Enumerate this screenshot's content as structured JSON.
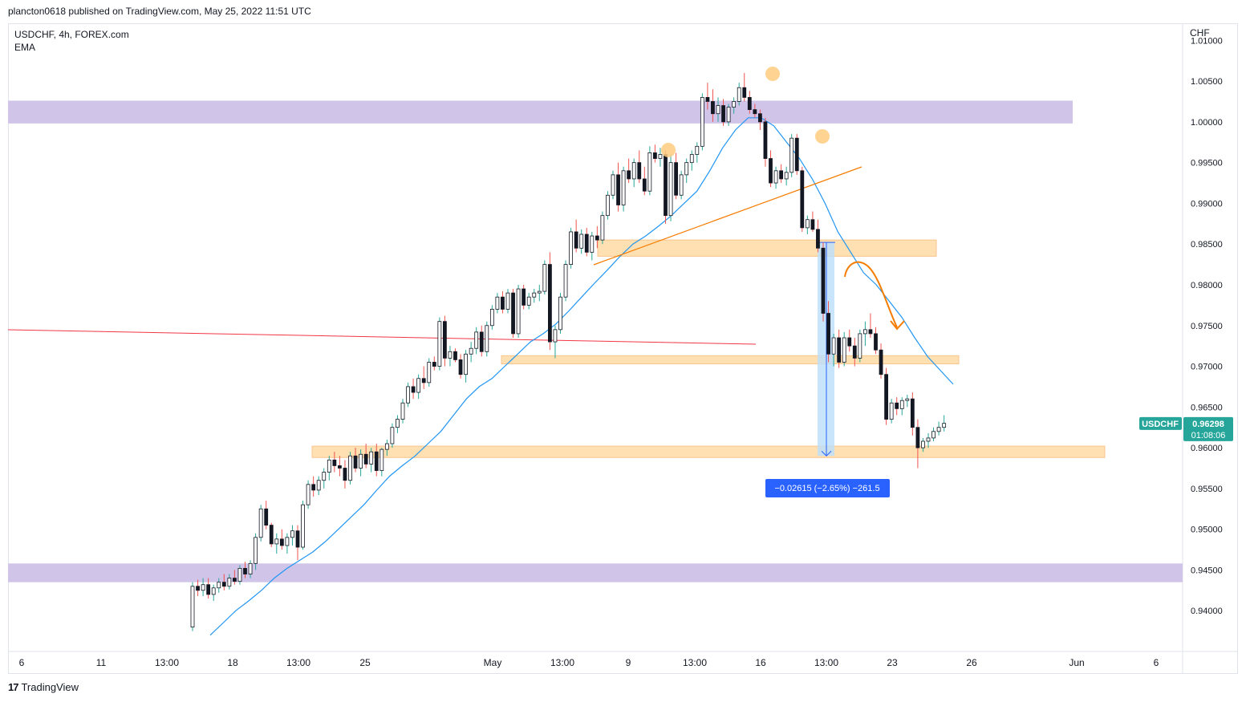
{
  "header": {
    "published": "plancton0618 published on TradingView.com, May 25, 2022 11:51 UTC"
  },
  "legend": {
    "symbol_line": "USDCHF, 4h, FOREX.com",
    "indicator": "EMA"
  },
  "axis": {
    "currency": "CHF"
  },
  "price_label": {
    "symbol": "USDCHF",
    "price": "0.96298",
    "countdown": "01:08:06",
    "value": 0.96298
  },
  "measure_label": "−0.02615 (−2.65%) −261.5",
  "brand": {
    "name": "TradingView",
    "logo": "tradingview-logo"
  },
  "colors": {
    "up": "#26a69a",
    "down": "#ef5350",
    "candle": "#131722",
    "ema": "#2196f3",
    "zone_purple": "#d1c4e9",
    "zone_orange": "#ffe0b2",
    "trend": "#f57c00",
    "red_line": "#f23645",
    "measure_fill": "#bbdefb",
    "measure_label_bg": "#2962ff",
    "price_tag": "#26a69a"
  },
  "chart_data": {
    "type": "candlestick",
    "symbol": "USDCHF",
    "timeframe": "4h",
    "ylim": [
      0.935,
      1.012
    ],
    "y_ticks": [
      "1.01000",
      "1.00500",
      "1.00000",
      "0.99500",
      "0.99000",
      "0.98500",
      "0.98000",
      "0.97500",
      "0.97000",
      "0.96500",
      "0.96000",
      "0.95500",
      "0.95000",
      "0.94500",
      "0.94000"
    ],
    "x_ticks": [
      "6",
      "11",
      "13:00",
      "18",
      "13:00",
      "25",
      "May",
      "13:00",
      "9",
      "13:00",
      "16",
      "13:00",
      "23",
      "26",
      "Jun",
      "6"
    ],
    "candles": [
      [
        0.938,
        0.9435,
        0.9375,
        0.943
      ],
      [
        0.943,
        0.9438,
        0.9418,
        0.9425
      ],
      [
        0.9425,
        0.944,
        0.9418,
        0.9432
      ],
      [
        0.9432,
        0.944,
        0.9415,
        0.942
      ],
      [
        0.942,
        0.9432,
        0.9412,
        0.9428
      ],
      [
        0.9428,
        0.944,
        0.9422,
        0.9435
      ],
      [
        0.9435,
        0.9445,
        0.9425,
        0.943
      ],
      [
        0.943,
        0.9445,
        0.9426,
        0.944
      ],
      [
        0.944,
        0.945,
        0.9432,
        0.9436
      ],
      [
        0.9436,
        0.9456,
        0.9432,
        0.9452
      ],
      [
        0.9452,
        0.946,
        0.944,
        0.9445
      ],
      [
        0.9445,
        0.9462,
        0.944,
        0.9458
      ],
      [
        0.9458,
        0.9495,
        0.945,
        0.949
      ],
      [
        0.949,
        0.953,
        0.9485,
        0.9525
      ],
      [
        0.9525,
        0.9535,
        0.95,
        0.9505
      ],
      [
        0.9505,
        0.9508,
        0.9478,
        0.9482
      ],
      [
        0.9482,
        0.9495,
        0.947,
        0.9488
      ],
      [
        0.9488,
        0.95,
        0.9475,
        0.948
      ],
      [
        0.948,
        0.9495,
        0.947,
        0.949
      ],
      [
        0.949,
        0.9505,
        0.948,
        0.9498
      ],
      [
        0.9498,
        0.9505,
        0.9462,
        0.9478
      ],
      [
        0.9478,
        0.9535,
        0.9475,
        0.953
      ],
      [
        0.953,
        0.956,
        0.9525,
        0.9555
      ],
      [
        0.9555,
        0.9565,
        0.954,
        0.9548
      ],
      [
        0.9548,
        0.9565,
        0.9542,
        0.956
      ],
      [
        0.956,
        0.9575,
        0.955,
        0.957
      ],
      [
        0.957,
        0.959,
        0.956,
        0.9585
      ],
      [
        0.9585,
        0.9595,
        0.957,
        0.9578
      ],
      [
        0.9578,
        0.959,
        0.9565,
        0.9575
      ],
      [
        0.9575,
        0.9585,
        0.955,
        0.956
      ],
      [
        0.956,
        0.9595,
        0.9555,
        0.959
      ],
      [
        0.959,
        0.96,
        0.957,
        0.9575
      ],
      [
        0.9575,
        0.9598,
        0.9565,
        0.9592
      ],
      [
        0.9592,
        0.9605,
        0.9575,
        0.958
      ],
      [
        0.958,
        0.96,
        0.957,
        0.9595
      ],
      [
        0.9595,
        0.9605,
        0.9565,
        0.9572
      ],
      [
        0.9572,
        0.96,
        0.9565,
        0.9598
      ],
      [
        0.9598,
        0.961,
        0.959,
        0.9605
      ],
      [
        0.9605,
        0.963,
        0.96,
        0.9625
      ],
      [
        0.9625,
        0.964,
        0.9618,
        0.9635
      ],
      [
        0.9635,
        0.966,
        0.963,
        0.9655
      ],
      [
        0.9655,
        0.968,
        0.965,
        0.9675
      ],
      [
        0.9675,
        0.9685,
        0.966,
        0.9668
      ],
      [
        0.9668,
        0.969,
        0.966,
        0.9685
      ],
      [
        0.9685,
        0.97,
        0.9672,
        0.968
      ],
      [
        0.968,
        0.971,
        0.9675,
        0.9705
      ],
      [
        0.9705,
        0.9712,
        0.9695,
        0.97
      ],
      [
        0.97,
        0.976,
        0.9695,
        0.9755
      ],
      [
        0.9755,
        0.9762,
        0.97,
        0.971
      ],
      [
        0.971,
        0.9725,
        0.97,
        0.9718
      ],
      [
        0.9718,
        0.9722,
        0.9705,
        0.9708
      ],
      [
        0.9708,
        0.9715,
        0.9685,
        0.969
      ],
      [
        0.969,
        0.972,
        0.968,
        0.9715
      ],
      [
        0.9715,
        0.973,
        0.9705,
        0.9722
      ],
      [
        0.9722,
        0.9748,
        0.9715,
        0.9742
      ],
      [
        0.9742,
        0.975,
        0.9712,
        0.9718
      ],
      [
        0.9718,
        0.9755,
        0.9712,
        0.975
      ],
      [
        0.975,
        0.9775,
        0.9745,
        0.977
      ],
      [
        0.977,
        0.979,
        0.9765,
        0.9785
      ],
      [
        0.9785,
        0.9792,
        0.9765,
        0.977
      ],
      [
        0.977,
        0.9795,
        0.9765,
        0.979
      ],
      [
        0.979,
        0.9795,
        0.9735,
        0.974
      ],
      [
        0.974,
        0.98,
        0.9735,
        0.9795
      ],
      [
        0.9795,
        0.98,
        0.977,
        0.9775
      ],
      [
        0.9775,
        0.979,
        0.977,
        0.9785
      ],
      [
        0.9785,
        0.9795,
        0.9778,
        0.979
      ],
      [
        0.979,
        0.98,
        0.978,
        0.9792
      ],
      [
        0.9792,
        0.983,
        0.9788,
        0.9825
      ],
      [
        0.9825,
        0.984,
        0.972,
        0.973
      ],
      [
        0.973,
        0.975,
        0.971,
        0.9745
      ],
      [
        0.9745,
        0.979,
        0.974,
        0.9785
      ],
      [
        0.9785,
        0.983,
        0.978,
        0.9825
      ],
      [
        0.9825,
        0.987,
        0.982,
        0.9865
      ],
      [
        0.9865,
        0.988,
        0.984,
        0.9845
      ],
      [
        0.9845,
        0.9868,
        0.9838,
        0.9862
      ],
      [
        0.9862,
        0.987,
        0.9835,
        0.984
      ],
      [
        0.984,
        0.9865,
        0.983,
        0.986
      ],
      [
        0.986,
        0.9872,
        0.9845,
        0.9855
      ],
      [
        0.9855,
        0.989,
        0.985,
        0.9885
      ],
      [
        0.9885,
        0.9915,
        0.988,
        0.991
      ],
      [
        0.991,
        0.994,
        0.9905,
        0.9935
      ],
      [
        0.9935,
        0.995,
        0.989,
        0.9898
      ],
      [
        0.9898,
        0.9945,
        0.989,
        0.994
      ],
      [
        0.994,
        0.9955,
        0.9925,
        0.993
      ],
      [
        0.993,
        0.9955,
        0.992,
        0.995
      ],
      [
        0.995,
        0.9965,
        0.9925,
        0.993
      ],
      [
        0.993,
        0.9945,
        0.991,
        0.9915
      ],
      [
        0.9915,
        0.997,
        0.991,
        0.9962
      ],
      [
        0.9962,
        0.9972,
        0.995,
        0.9955
      ],
      [
        0.9955,
        0.9968,
        0.9945,
        0.996
      ],
      [
        0.996,
        0.9965,
        0.9875,
        0.9885
      ],
      [
        0.9885,
        0.996,
        0.9878,
        0.995
      ],
      [
        0.995,
        0.9962,
        0.9905,
        0.991
      ],
      [
        0.991,
        0.994,
        0.9905,
        0.9935
      ],
      [
        0.9935,
        0.9955,
        0.9925,
        0.995
      ],
      [
        0.995,
        0.9965,
        0.994,
        0.996
      ],
      [
        0.996,
        0.9975,
        0.995,
        0.997
      ],
      [
        0.997,
        1.0035,
        0.9965,
        1.003
      ],
      [
        1.003,
        1.0048,
        1.0015,
        1.0025
      ],
      [
        1.0025,
        1.004,
        1.0,
        1.001
      ],
      [
        1.001,
        1.003,
        1.0,
        1.002
      ],
      [
        1.002,
        1.0028,
        0.9995,
        1.0
      ],
      [
        1.0,
        1.0022,
        0.9995,
        1.0018
      ],
      [
        1.0018,
        1.003,
        1.001,
        1.0025
      ],
      [
        1.0025,
        1.0048,
        1.002,
        1.0042
      ],
      [
        1.0042,
        1.006,
        1.0025,
        1.003
      ],
      [
        1.003,
        1.0038,
        1.001,
        1.0015
      ],
      [
        1.0015,
        1.0022,
        1.0005,
        1.001
      ],
      [
        1.001,
        1.0015,
        0.999,
        1.0
      ],
      [
        1.0,
        1.0005,
        0.9945,
        0.9955
      ],
      [
        0.9955,
        0.9965,
        0.992,
        0.9925
      ],
      [
        0.9925,
        0.9945,
        0.9918,
        0.994
      ],
      [
        0.994,
        0.9948,
        0.9925,
        0.993
      ],
      [
        0.993,
        0.9945,
        0.9922,
        0.9938
      ],
      [
        0.9938,
        0.9985,
        0.9932,
        0.998
      ],
      [
        0.998,
        0.9985,
        0.9935,
        0.994
      ],
      [
        0.994,
        0.9945,
        0.9865,
        0.987
      ],
      [
        0.987,
        0.9885,
        0.9862,
        0.988
      ],
      [
        0.988,
        0.989,
        0.9865,
        0.9868
      ],
      [
        0.9868,
        0.988,
        0.984,
        0.9845
      ],
      [
        0.9845,
        0.9852,
        0.9755,
        0.9765
      ],
      [
        0.9765,
        0.978,
        0.9705,
        0.9715
      ],
      [
        0.9715,
        0.974,
        0.97,
        0.9735
      ],
      [
        0.9735,
        0.9745,
        0.9698,
        0.9705
      ],
      [
        0.9705,
        0.9742,
        0.97,
        0.9735
      ],
      [
        0.9735,
        0.9745,
        0.9718,
        0.9725
      ],
      [
        0.9725,
        0.9735,
        0.97,
        0.971
      ],
      [
        0.971,
        0.9745,
        0.9705,
        0.974
      ],
      [
        0.974,
        0.9755,
        0.9725,
        0.9745
      ],
      [
        0.9745,
        0.9765,
        0.9735,
        0.974
      ],
      [
        0.974,
        0.9748,
        0.9715,
        0.972
      ],
      [
        0.972,
        0.9728,
        0.9685,
        0.969
      ],
      [
        0.969,
        0.9698,
        0.9628,
        0.9635
      ],
      [
        0.9635,
        0.966,
        0.963,
        0.9655
      ],
      [
        0.9655,
        0.9662,
        0.964,
        0.9648
      ],
      [
        0.9648,
        0.9662,
        0.964,
        0.9658
      ],
      [
        0.9658,
        0.9665,
        0.965,
        0.966
      ],
      [
        0.966,
        0.9668,
        0.9615,
        0.9625
      ],
      [
        0.9625,
        0.9635,
        0.9575,
        0.96
      ],
      [
        0.96,
        0.9612,
        0.9595,
        0.9608
      ],
      [
        0.9608,
        0.9618,
        0.96,
        0.9612
      ],
      [
        0.9612,
        0.9625,
        0.9608,
        0.962
      ],
      [
        0.962,
        0.9632,
        0.9615,
        0.9625
      ],
      [
        0.9625,
        0.964,
        0.962,
        0.963
      ]
    ],
    "ema": [
      0.937,
      0.9385,
      0.94,
      0.9412,
      0.9425,
      0.944,
      0.9452,
      0.9462,
      0.9472,
      0.9485,
      0.95,
      0.9515,
      0.953,
      0.9548,
      0.9565,
      0.9578,
      0.959,
      0.9605,
      0.962,
      0.964,
      0.966,
      0.9675,
      0.9685,
      0.97,
      0.9715,
      0.973,
      0.974,
      0.9752,
      0.9768,
      0.9785,
      0.9802,
      0.9818,
      0.9835,
      0.985,
      0.986,
      0.9872,
      0.9885,
      0.99,
      0.9915,
      0.994,
      0.9968,
      0.999,
      1.0005,
      1.0005,
      0.9995,
      0.9975,
      0.9955,
      0.993,
      0.99,
      0.9865,
      0.984,
      0.9815,
      0.98,
      0.978,
      0.976,
      0.9735,
      0.9712,
      0.9695,
      0.9678
    ],
    "zones": [
      {
        "type": "resistance",
        "color": "purple",
        "from": 0.9998,
        "to": 1.0026
      },
      {
        "type": "support",
        "color": "purple",
        "from": 0.9435,
        "to": 0.9458
      },
      {
        "type": "zone",
        "color": "orange",
        "from": 0.9835,
        "to": 0.9855
      },
      {
        "type": "zone",
        "color": "orange",
        "from": 0.9703,
        "to": 0.9713
      },
      {
        "type": "zone",
        "color": "orange",
        "from": 0.9588,
        "to": 0.9602
      }
    ],
    "annotations": {
      "measure": {
        "from": 0.9852,
        "to": 0.959,
        "change": -0.02615,
        "percent": -2.65,
        "pips": -261.5
      },
      "markers": [
        "shoulder-left",
        "head",
        "shoulder-right"
      ]
    }
  }
}
